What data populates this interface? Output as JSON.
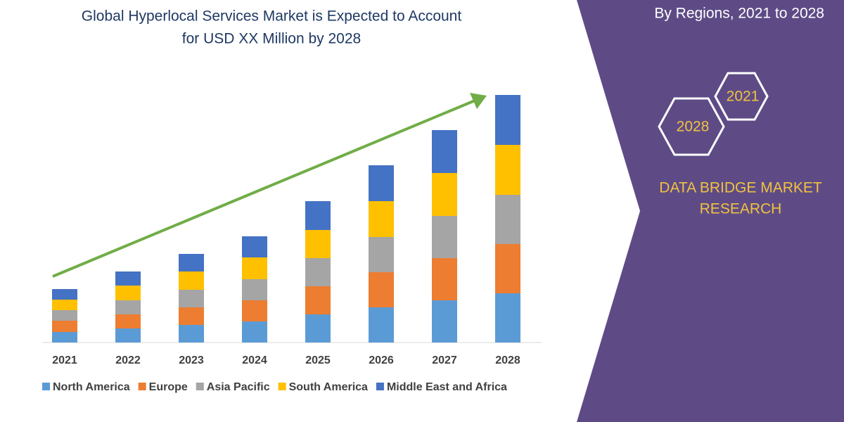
{
  "chart_data": {
    "type": "stacked-bar",
    "title": [
      "Global Hyperlocal Services Market is Expected to Account",
      "for USD XX Million by 2028"
    ],
    "subtitle": "By Regions, 2021 to 2028",
    "categories": [
      "2021",
      "2022",
      "2023",
      "2024",
      "2025",
      "2026",
      "2027",
      "2028"
    ],
    "series": [
      {
        "name": "North America",
        "color": "#5b9bd5",
        "values": [
          15,
          20,
          25,
          30,
          40,
          50,
          60,
          70
        ]
      },
      {
        "name": "Europe",
        "color": "#ed7d31",
        "values": [
          16,
          20,
          25,
          30,
          40,
          50,
          60,
          70
        ]
      },
      {
        "name": "Asia Pacific",
        "color": "#a5a5a5",
        "values": [
          15,
          20,
          25,
          30,
          40,
          50,
          60,
          70
        ]
      },
      {
        "name": "South America",
        "color": "#ffc000",
        "values": [
          15,
          21,
          26,
          31,
          40,
          51,
          61,
          71
        ]
      },
      {
        "name": "Middle East and Africa",
        "color": "#4472c4",
        "values": [
          15,
          20,
          25,
          30,
          41,
          51,
          61,
          71
        ]
      }
    ],
    "ylim": [
      0,
      352
    ],
    "badges": [
      "2021",
      "2028"
    ],
    "brand": [
      "DATA BRIDGE MARKET",
      "RESEARCH"
    ]
  }
}
